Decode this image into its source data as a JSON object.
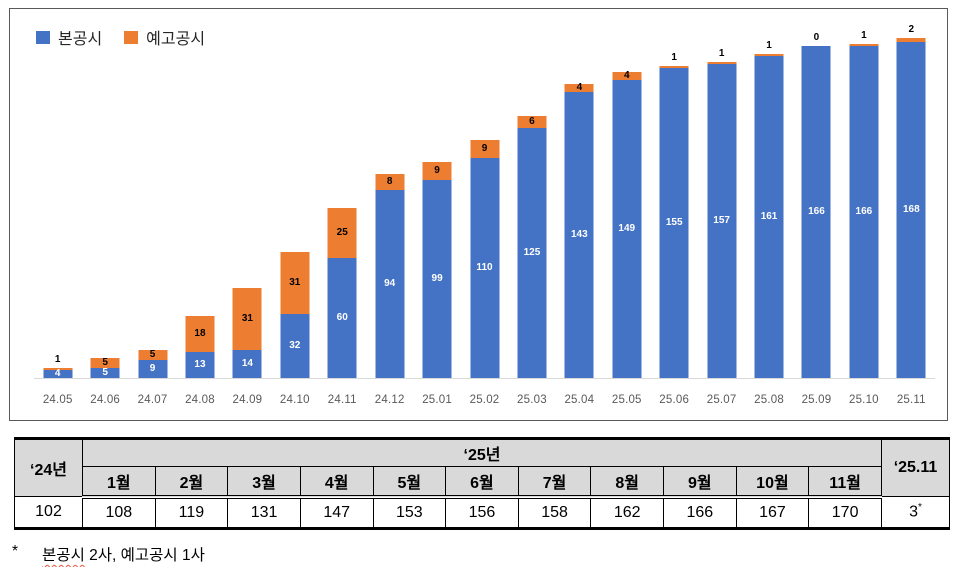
{
  "colors": {
    "primary_blue": "#4472C4",
    "secondary_orange": "#ED7D31",
    "axis_text": "#595959",
    "table_header_bg": "#D9D9D9",
    "chart_border": "#595959",
    "axis_line": "#D9D9D9"
  },
  "chart_data": {
    "type": "bar",
    "stacked": true,
    "title": "",
    "xlabel": "",
    "ylabel": "",
    "grid": false,
    "legend_position": "top-left",
    "ylim": [
      0,
      170
    ],
    "categories": [
      "24.05",
      "24.06",
      "24.07",
      "24.08",
      "24.09",
      "24.10",
      "24.11",
      "24.12",
      "25.01",
      "25.02",
      "25.03",
      "25.04",
      "25.05",
      "25.06",
      "25.07",
      "25.08",
      "25.09",
      "25.10",
      "25.11"
    ],
    "series": [
      {
        "name": "본공시",
        "color": "#4472C4",
        "values": [
          4,
          5,
          9,
          13,
          14,
          32,
          60,
          94,
          99,
          110,
          125,
          143,
          149,
          155,
          157,
          161,
          166,
          166,
          168
        ]
      },
      {
        "name": "예고공시",
        "color": "#ED7D31",
        "values": [
          1,
          5,
          5,
          18,
          31,
          31,
          25,
          8,
          9,
          9,
          6,
          4,
          4,
          1,
          1,
          1,
          0,
          1,
          2
        ]
      }
    ]
  },
  "legend": {
    "items": [
      {
        "label": "본공시",
        "color": "#4472C4"
      },
      {
        "label": "예고공시",
        "color": "#ED7D31"
      }
    ]
  },
  "table": {
    "col_first_header": "‘24년",
    "group_header": "‘25년",
    "months": [
      "1월",
      "2월",
      "3월",
      "4월",
      "5월",
      "6월",
      "7월",
      "8월",
      "9월",
      "10월",
      "11월"
    ],
    "col_last_header": "‘25.11",
    "values": [
      "102",
      "108",
      "119",
      "131",
      "147",
      "153",
      "156",
      "158",
      "162",
      "166",
      "167",
      "170"
    ],
    "last_value": "3",
    "last_value_mark": "*"
  },
  "footnote": {
    "marker": "*",
    "underlined_text": "본공시",
    "rest_text": " 2사,  예고공시 1사"
  }
}
